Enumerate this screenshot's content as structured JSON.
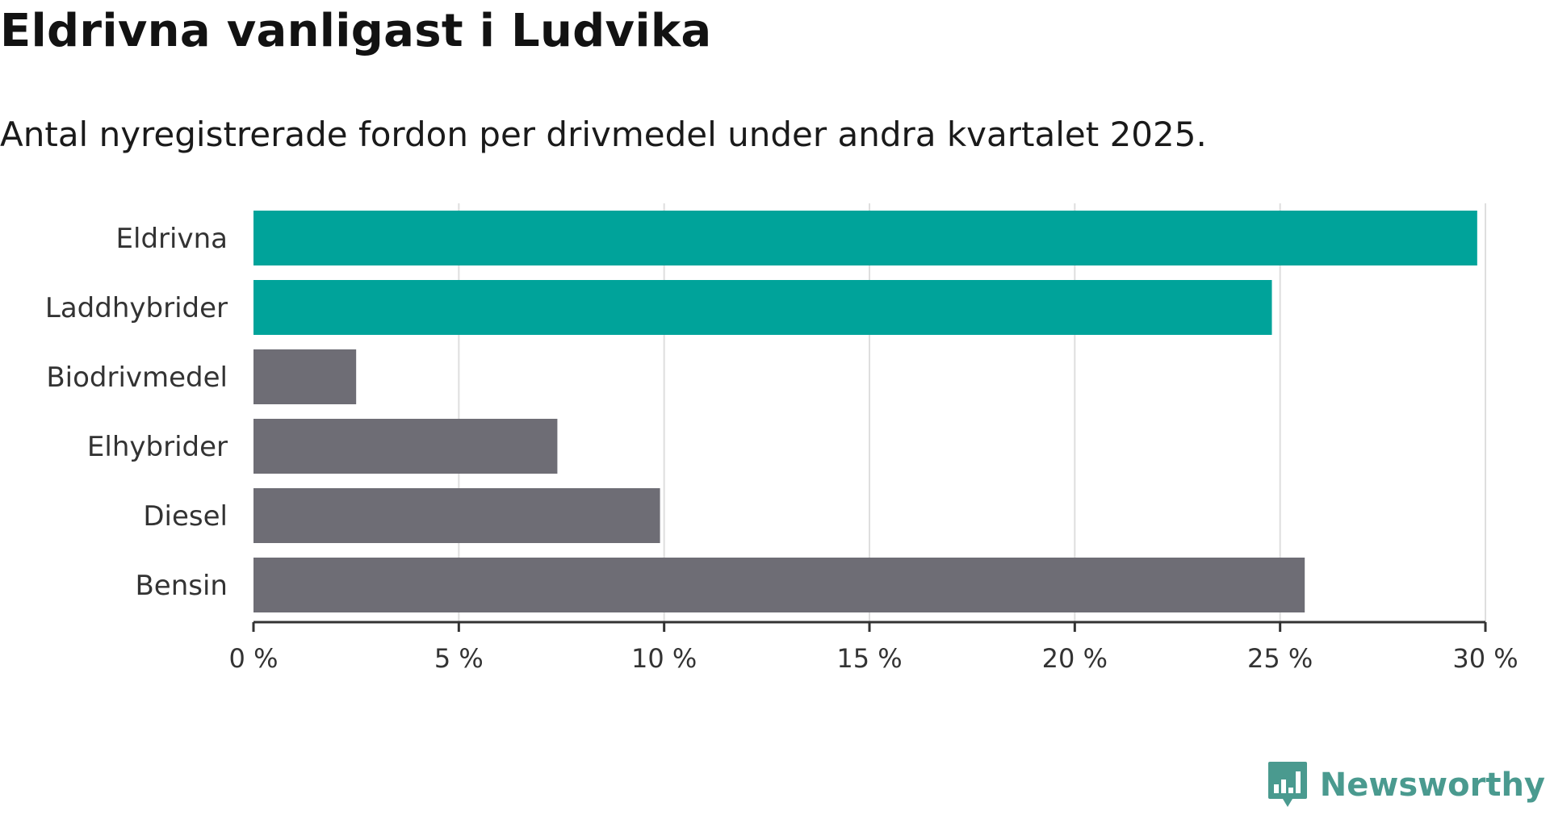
{
  "title": "Eldrivna vanligast i Ludvika",
  "subtitle": "Antal nyregistrerade fordon per drivmedel under andra kvartalet 2025.",
  "logo": {
    "text": "Newsworthy",
    "icon": "newsworthy-logo-icon"
  },
  "colors": {
    "highlight": "#00a39a",
    "default": "#6e6d75",
    "grid": "#dedede",
    "axis": "#333333",
    "logo": "#4a9a8f"
  },
  "chart_data": {
    "type": "bar",
    "orientation": "horizontal",
    "categories": [
      "Eldrivna",
      "Laddhybrider",
      "Biodrivmedel",
      "Elhybrider",
      "Diesel",
      "Bensin"
    ],
    "values": [
      29.8,
      24.8,
      2.5,
      7.4,
      9.9,
      25.6
    ],
    "highlighted": [
      true,
      true,
      false,
      false,
      false,
      false
    ],
    "unit": "%",
    "xlim": [
      0,
      30
    ],
    "ticks": [
      0,
      5,
      10,
      15,
      20,
      25,
      30
    ],
    "tick_labels": [
      "0 %",
      "5 %",
      "10 %",
      "15 %",
      "20 %",
      "25 %",
      "30 %"
    ],
    "grid": "vertical",
    "xlabel": "",
    "ylabel": ""
  }
}
